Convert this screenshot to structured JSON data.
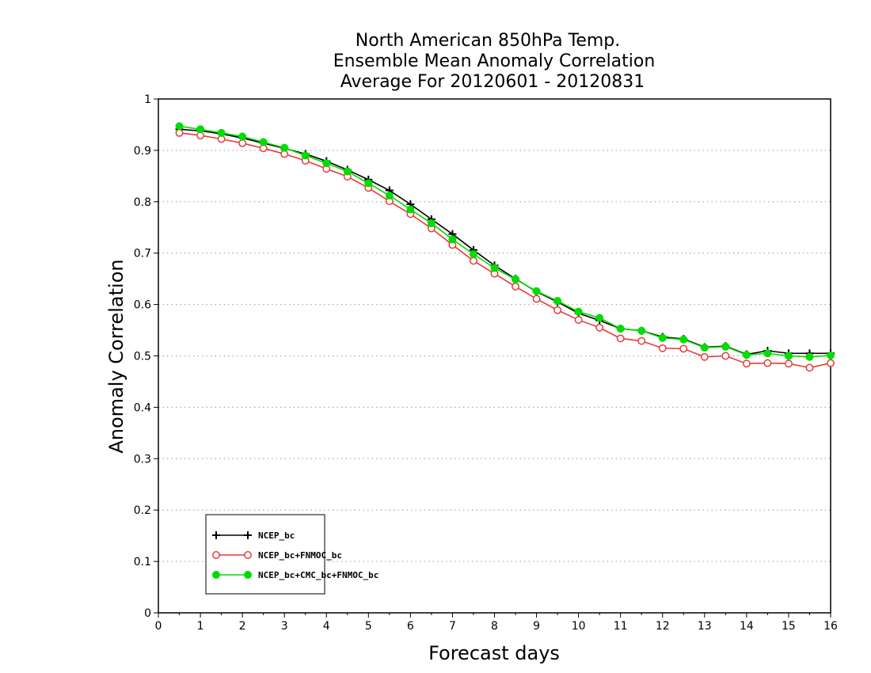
{
  "chart_data": {
    "type": "line",
    "title_lines": [
      "North American 850hPa Temp.",
      "Ensemble Mean Anomaly Correlation",
      "Average For 20120601 - 20120831"
    ],
    "xlabel": "Forecast days",
    "ylabel": "Anomaly Correlation",
    "xlim": [
      0,
      16
    ],
    "ylim": [
      0,
      1
    ],
    "x_ticks": [
      "0",
      "1",
      "2",
      "3",
      "4",
      "5",
      "6",
      "7",
      "8",
      "9",
      "10",
      "11",
      "12",
      "13",
      "14",
      "15",
      "16"
    ],
    "y_ticks": [
      "0",
      "0.1",
      "0.2",
      "0.3",
      "0.4",
      "0.5",
      "0.6",
      "0.7",
      "0.8",
      "0.9",
      "1"
    ],
    "grid": true,
    "legend_position": "bottom-left",
    "x": [
      0.5,
      1,
      1.5,
      2,
      2.5,
      3,
      3.5,
      4,
      4.5,
      5,
      5.5,
      6,
      6.5,
      7,
      7.5,
      8,
      8.5,
      9,
      9.5,
      10,
      10.5,
      11,
      11.5,
      12,
      12.5,
      13,
      13.5,
      14,
      14.5,
      15,
      15.5,
      16
    ],
    "series": [
      {
        "name": "NCEP_bc",
        "color": "#000000",
        "marker": "plus",
        "values": [
          0.941,
          0.938,
          0.932,
          0.924,
          0.914,
          0.904,
          0.893,
          0.879,
          0.862,
          0.843,
          0.822,
          0.795,
          0.766,
          0.737,
          0.706,
          0.676,
          0.65,
          0.625,
          0.605,
          0.583,
          0.569,
          0.553,
          0.549,
          0.537,
          0.533,
          0.517,
          0.519,
          0.503,
          0.51,
          0.505,
          0.505,
          0.505
        ]
      },
      {
        "name": "NCEP_bc+FNMOC_bc",
        "color": "#e83a3a",
        "marker": "open-circle",
        "values": [
          0.934,
          0.929,
          0.922,
          0.914,
          0.904,
          0.893,
          0.88,
          0.864,
          0.849,
          0.827,
          0.801,
          0.776,
          0.748,
          0.716,
          0.685,
          0.66,
          0.635,
          0.611,
          0.589,
          0.57,
          0.555,
          0.534,
          0.529,
          0.515,
          0.514,
          0.498,
          0.5,
          0.485,
          0.486,
          0.485,
          0.477,
          0.486
        ]
      },
      {
        "name": "NCEP_bc+CMC_bc+FNMOC_bc",
        "color": "#00dd00",
        "marker": "filled-circle",
        "values": [
          0.947,
          0.941,
          0.934,
          0.927,
          0.916,
          0.905,
          0.89,
          0.875,
          0.859,
          0.836,
          0.812,
          0.785,
          0.758,
          0.727,
          0.698,
          0.671,
          0.649,
          0.626,
          0.607,
          0.586,
          0.574,
          0.553,
          0.549,
          0.535,
          0.532,
          0.516,
          0.518,
          0.502,
          0.505,
          0.5,
          0.498,
          0.501
        ]
      }
    ]
  }
}
